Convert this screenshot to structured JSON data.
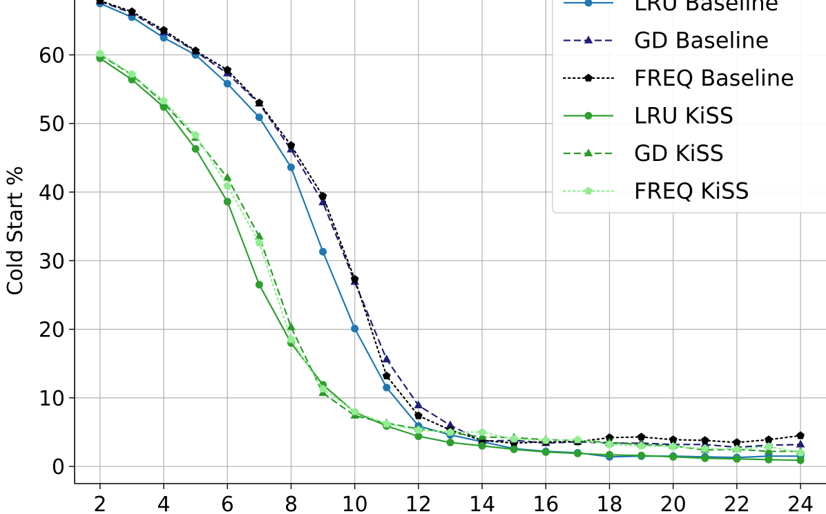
{
  "chart_data": {
    "type": "line",
    "title": "",
    "xlabel": "",
    "ylabel": "Cold Start %",
    "xlim": [
      1.2,
      24.8
    ],
    "ylim": [
      -2.5,
      68
    ],
    "xticks": [
      2,
      4,
      6,
      8,
      10,
      12,
      14,
      16,
      18,
      20,
      22,
      24
    ],
    "yticks": [
      0,
      10,
      20,
      30,
      40,
      50,
      60
    ],
    "grid": true,
    "legend_placement": "top-right",
    "x": [
      2,
      3,
      4,
      5,
      6,
      7,
      8,
      9,
      10,
      11,
      12,
      13,
      14,
      15,
      16,
      17,
      18,
      19,
      20,
      21,
      22,
      23,
      24
    ],
    "series": [
      {
        "name": "LRU Baseline",
        "color": "#1f77b4",
        "linestyle": "solid",
        "marker": "circle",
        "values": [
          67.5,
          65.5,
          62.5,
          60.0,
          55.8,
          50.9,
          43.6,
          31.3,
          20.1,
          11.5,
          5.9,
          4.6,
          3.6,
          2.6,
          2.2,
          2.0,
          1.4,
          1.5,
          1.5,
          1.4,
          1.3,
          1.5,
          1.5
        ]
      },
      {
        "name": "GD Baseline",
        "color": "#1f1f78",
        "linestyle": "dashed",
        "marker": "triangle",
        "values": [
          67.8,
          66.1,
          63.3,
          60.5,
          57.3,
          52.9,
          46.2,
          38.5,
          26.9,
          15.6,
          8.9,
          6.0,
          3.7,
          3.8,
          3.4,
          3.6,
          3.4,
          3.4,
          3.2,
          3.2,
          2.8,
          3.1,
          3.2
        ]
      },
      {
        "name": "FREQ Baseline",
        "color": "#000000",
        "linestyle": "dotted",
        "marker": "pentagon",
        "values": [
          67.9,
          66.3,
          63.6,
          60.6,
          57.8,
          53.0,
          46.8,
          39.4,
          27.3,
          13.2,
          7.4,
          5.3,
          3.8,
          3.4,
          3.6,
          3.6,
          4.2,
          4.3,
          3.9,
          3.8,
          3.5,
          3.9,
          4.5
        ]
      },
      {
        "name": "LRU KiSS",
        "color": "#2ca02c",
        "linestyle": "solid",
        "marker": "circle",
        "values": [
          59.5,
          56.4,
          52.4,
          46.3,
          38.6,
          26.5,
          18.0,
          11.9,
          7.9,
          5.9,
          4.4,
          3.5,
          3.0,
          2.5,
          2.1,
          1.9,
          1.7,
          1.6,
          1.4,
          1.2,
          1.1,
          1.0,
          0.9
        ]
      },
      {
        "name": "GD KiSS",
        "color": "#2a9a2a",
        "linestyle": "dashed",
        "marker": "triangle",
        "values": [
          60.0,
          57.1,
          53.0,
          47.9,
          42.1,
          33.5,
          20.3,
          10.7,
          7.4,
          6.3,
          5.5,
          4.9,
          4.3,
          4.2,
          3.9,
          3.8,
          3.5,
          3.2,
          3.0,
          2.4,
          2.5,
          2.2,
          2.2
        ]
      },
      {
        "name": "FREQ KiSS",
        "color": "#90ee90",
        "linestyle": "dotted",
        "marker": "pentagon",
        "values": [
          60.2,
          57.2,
          53.3,
          48.3,
          40.9,
          32.6,
          18.5,
          11.3,
          8.0,
          6.2,
          5.3,
          5.0,
          5.0,
          4.0,
          3.8,
          3.9,
          3.2,
          3.0,
          2.9,
          2.6,
          2.5,
          2.9,
          2.0
        ]
      }
    ]
  }
}
